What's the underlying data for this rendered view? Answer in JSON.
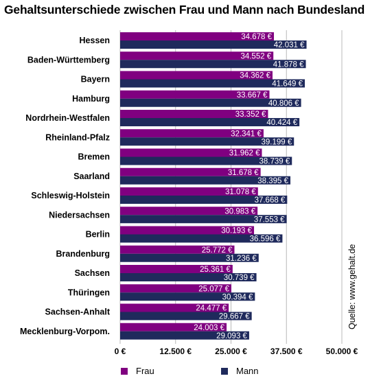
{
  "title": "Gehaltsunterschiede zwischen Frau und Mann nach Bundesland",
  "source_note": "Quelle: www.gehalt.de",
  "colors": {
    "frau": "#800080",
    "mann": "#1f2a5c"
  },
  "legend": [
    {
      "name": "Frau",
      "color": "#800080"
    },
    {
      "name": "Mann",
      "color": "#1f2a5c"
    }
  ],
  "chart_data": {
    "type": "bar",
    "orientation": "horizontal",
    "title": "Gehaltsunterschiede zwischen Frau und Mann nach Bundesland",
    "categories": [
      "Hessen",
      "Baden-Württemberg",
      "Bayern",
      "Hamburg",
      "Nordrhein-Westfalen",
      "Rheinland-Pfalz",
      "Bremen",
      "Saarland",
      "Schleswig-Holstein",
      "Niedersachsen",
      "Berlin",
      "Brandenburg",
      "Sachsen",
      "Thüringen",
      "Sachsen-Anhalt",
      "Mecklenburg-Vorpom."
    ],
    "series": [
      {
        "name": "Frau",
        "values": [
          34678,
          34552,
          34362,
          33667,
          33352,
          32341,
          31962,
          31678,
          31078,
          30983,
          30193,
          25772,
          25361,
          25077,
          24477,
          24003
        ],
        "labels": [
          "34.678 €",
          "34.552 €",
          "34.362 €",
          "33.667 €",
          "33.352 €",
          "32.341 €",
          "31.962 €",
          "31.678 €",
          "31.078 €",
          "30.983 €",
          "30.193 €",
          "25.772 €",
          "25.361 €",
          "25.077 €",
          "24.477 €",
          "24.003 €"
        ]
      },
      {
        "name": "Mann",
        "values": [
          42031,
          41878,
          41649,
          40806,
          40424,
          39199,
          38739,
          38395,
          37668,
          37553,
          36596,
          31236,
          30739,
          30394,
          29667,
          29093
        ],
        "labels": [
          "42.031 €",
          "41.878 €",
          "41.649 €",
          "40.806 €",
          "40.424 €",
          "39.199 €",
          "38.739 €",
          "38.395 €",
          "37.668 €",
          "37.553 €",
          "36.596 €",
          "31.236 €",
          "30.739 €",
          "30.394 €",
          "29.667 €",
          "29.093 €"
        ]
      }
    ],
    "xlim": [
      0,
      50000
    ],
    "ticks": [
      0,
      12500,
      25000,
      37500,
      50000
    ],
    "tick_labels": [
      "0 €",
      "12.500 €",
      "25.000 €",
      "37.500 €",
      "50.000 €"
    ],
    "grid": true,
    "legend_position": "bottom"
  }
}
